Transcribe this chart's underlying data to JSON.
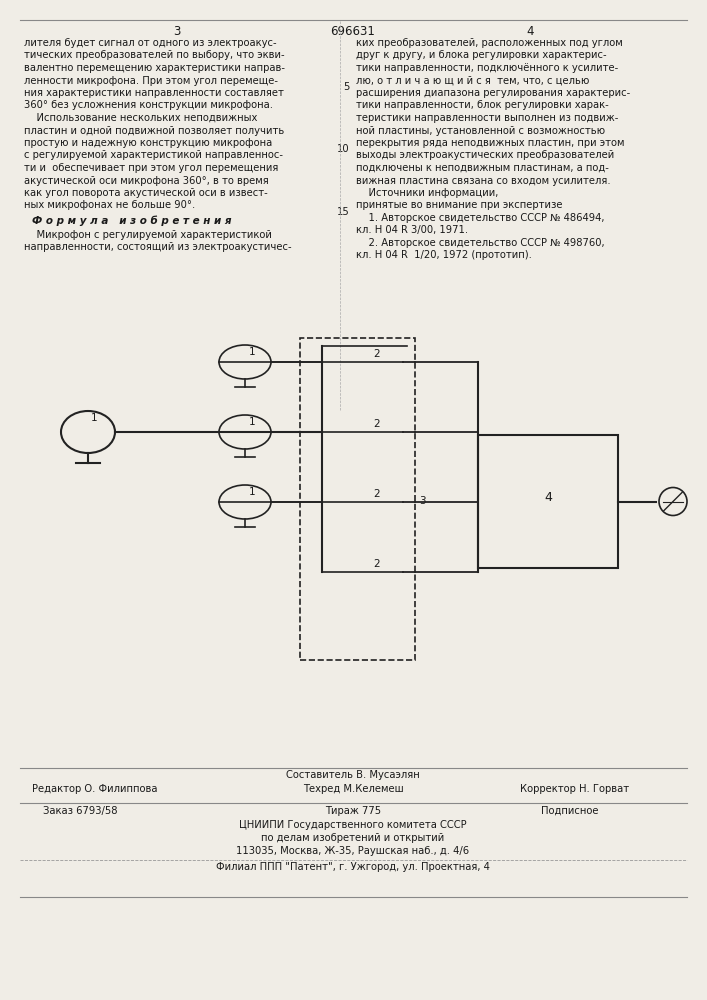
{
  "patent_number": "696631",
  "page_left": "3",
  "page_right": "4",
  "bg_color": "#f0ede6",
  "text_color": "#1a1a1a",
  "left_col_text": [
    "лителя будет сигнал от одного из электроакус-",
    "тических преобразователей по выбору, что экви-",
    "валентно перемещению характеристики направ-",
    "ленности микрофона. При этом угол перемеще-",
    "ния характеристики направленности составляет",
    "360° без усложнения конструкции микрофона.",
    "    Использование нескольких неподвижных",
    "пластин и одной подвижной позволяет получить",
    "простую и надежную конструкцию микрофона",
    "с регулируемой характеристикой направленнос-",
    "ти и  обеспечивает при этом угол перемещения",
    "акустической оси микрофона 360°, в то время",
    "как угол поворота акустической оси в извест-",
    "ных микрофонах не больше 90°."
  ],
  "formula_header": "Ф о р м у л а   и з о б р е т е н и я",
  "formula_text": [
    "    Микрофон с регулируемой характеристикой",
    "направленности, состоящий из электроакустичес-"
  ],
  "right_col_text": [
    "ких преобразователей, расположенных под углом",
    "друг к другу, и блока регулировки характерис-",
    "тики направленности, подключённого к усилите-",
    "лю, о т л и ч а ю щ и й с я  тем, что, с целью",
    "расширения диапазона регулирования характерис-",
    "тики направленности, блок регулировки харак-",
    "теристики направленности выполнен из подвиж-",
    "ной пластины, установленной с возможностью",
    "перекрытия ряда неподвижных пластин, при этом",
    "выходы электроакустических преобразователей",
    "подключены к неподвижным пластинам, а под-",
    "вижная пластина связана со входом усилителя.",
    "    Источники информации,",
    "принятые во внимание при экспертизе"
  ],
  "sources_text": [
    "    1. Авторское свидетельство СССР № 486494,",
    "кл. Н 04 R 3/00, 1971.",
    "    2. Авторское свидетельство СССР № 498760,",
    "кл. Н 04 R  1/20, 1972 (прототип)."
  ],
  "footer_composer": "Составитель В. Мусаэлян",
  "footer_editor": "Редактор О. Филиппова",
  "footer_techred": "Техред М.Келемеш",
  "footer_corrector": "Корректор Н. Горват",
  "footer_order": "Заказ 6793/58",
  "footer_tirazh": "Тираж 775",
  "footer_podpisnoe": "Подписное",
  "footer_tsniip1": "ЦНИИПИ Государственного комитета СССР",
  "footer_tsniip2": "по делам изобретений и открытий",
  "footer_address": "113035, Москва, Ж-35, Раушская наб., д. 4/6",
  "footer_filial": "Филиал ППП \"Патент\", г. Ужгород, ул. Проектная, 4"
}
